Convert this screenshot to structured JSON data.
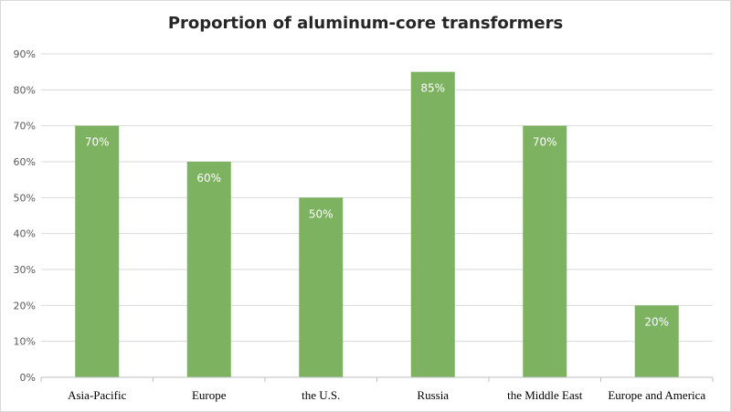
{
  "chart_data": {
    "type": "bar",
    "title": "Proportion of aluminum-core transformers",
    "categories": [
      "Asia-Pacific",
      "Europe",
      "the U.S.",
      "Russia",
      "the Middle East",
      "Europe and America"
    ],
    "values": [
      70,
      60,
      50,
      85,
      70,
      20
    ],
    "data_labels": [
      "70%",
      "60%",
      "50%",
      "85%",
      "70%",
      "20%"
    ],
    "y_ticks": [
      0,
      10,
      20,
      30,
      40,
      50,
      60,
      70,
      80,
      90
    ],
    "y_tick_labels": [
      "0%",
      "10%",
      "20%",
      "30%",
      "40%",
      "50%",
      "60%",
      "70%",
      "80%",
      "90%"
    ],
    "ylim": [
      0,
      90
    ],
    "grid": true,
    "legend": "none",
    "bar_color": "#7db260",
    "grid_color": "#d9d9d9"
  }
}
